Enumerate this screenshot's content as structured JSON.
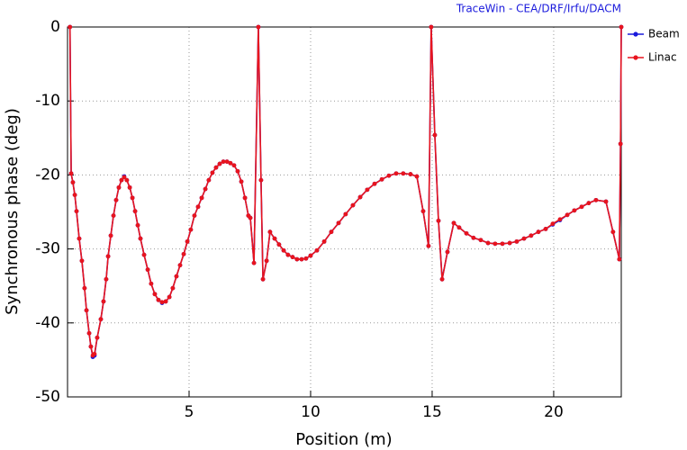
{
  "chart_data": {
    "type": "line",
    "subtitle": "TraceWin - CEA/DRF/Irfu/DACM",
    "x_label": "Position (m)",
    "y_label": "Synchronous phase (deg)",
    "xlim": [
      0,
      22.78
    ],
    "ylim": [
      -50,
      0
    ],
    "xticks": [
      5,
      10,
      15,
      20
    ],
    "yticks": [
      0,
      -10,
      -20,
      -30,
      -40,
      -50
    ],
    "grid": true,
    "legend": "right",
    "x": [
      0.1,
      0.15,
      0.22,
      0.3,
      0.37,
      0.48,
      0.59,
      0.7,
      0.78,
      0.89,
      0.96,
      1.04,
      1.11,
      1.22,
      1.37,
      1.48,
      1.59,
      1.67,
      1.78,
      1.89,
      2.0,
      2.11,
      2.22,
      2.33,
      2.44,
      2.56,
      2.67,
      2.78,
      2.89,
      3.0,
      3.15,
      3.3,
      3.44,
      3.59,
      3.74,
      3.89,
      4.04,
      4.19,
      4.33,
      4.48,
      4.63,
      4.78,
      4.93,
      5.07,
      5.22,
      5.37,
      5.52,
      5.67,
      5.81,
      5.96,
      6.11,
      6.26,
      6.41,
      6.56,
      6.7,
      6.85,
      7.0,
      7.15,
      7.3,
      7.44,
      7.52,
      7.67,
      7.85,
      7.96,
      8.04,
      8.19,
      8.33,
      8.52,
      8.7,
      8.89,
      9.07,
      9.26,
      9.44,
      9.63,
      9.81,
      10.0,
      10.26,
      10.56,
      10.85,
      11.15,
      11.44,
      11.74,
      12.04,
      12.33,
      12.63,
      12.93,
      13.22,
      13.52,
      13.81,
      14.11,
      14.37,
      14.63,
      14.85,
      14.96,
      15.11,
      15.26,
      15.41,
      15.63,
      15.89,
      16.11,
      16.41,
      16.7,
      17.0,
      17.3,
      17.59,
      17.89,
      18.19,
      18.48,
      18.78,
      19.07,
      19.37,
      19.67,
      19.96,
      20.26,
      20.56,
      20.85,
      21.15,
      21.44,
      21.74,
      22.15,
      22.44,
      22.7,
      22.75,
      22.78
    ],
    "series": [
      {
        "name": "Beam",
        "color": "#1a1adc",
        "values": [
          0,
          -19.8,
          -21,
          -22.7,
          -24.9,
          -28.6,
          -31.6,
          -35.3,
          -38.3,
          -41.4,
          -43.2,
          -44.6,
          -44.4,
          -42,
          -39.5,
          -37.1,
          -34.1,
          -31,
          -28.2,
          -25.5,
          -23.4,
          -21.7,
          -20.7,
          -20.2,
          -20.7,
          -21.7,
          -23.1,
          -24.9,
          -26.8,
          -28.6,
          -30.8,
          -32.8,
          -34.7,
          -36.1,
          -36.9,
          -37.3,
          -37.1,
          -36.5,
          -35.3,
          -33.7,
          -32.2,
          -30.7,
          -29,
          -27.4,
          -25.5,
          -24.3,
          -23.1,
          -21.9,
          -20.7,
          -19.7,
          -19,
          -18.5,
          -18.2,
          -18.2,
          -18.4,
          -18.7,
          -19.5,
          -20.9,
          -23.1,
          -25.5,
          -25.8,
          -31.9,
          0,
          -20.7,
          -34.1,
          -31.6,
          -27.7,
          -28.6,
          -29.4,
          -30.2,
          -30.8,
          -31.1,
          -31.4,
          -31.4,
          -31.3,
          -30.9,
          -30.2,
          -29,
          -27.7,
          -26.5,
          -25.3,
          -24.1,
          -23,
          -22,
          -21.2,
          -20.6,
          -20.1,
          -19.8,
          -19.8,
          -19.9,
          -20.2,
          -24.9,
          -29.6,
          0,
          -14.6,
          -26.2,
          -34.1,
          -30.4,
          -26.5,
          -27.1,
          -27.9,
          -28.5,
          -28.8,
          -29.2,
          -29.3,
          -29.3,
          -29.2,
          -29,
          -28.6,
          -28.2,
          -27.7,
          -27.3,
          -26.7,
          -26.1,
          -25.4,
          -24.8,
          -24.3,
          -23.8,
          -23.4,
          -23.6,
          -27.7,
          -31.4,
          -15.8,
          0
        ]
      },
      {
        "name": "Linac",
        "color": "#e8141e",
        "values": [
          0,
          -19.8,
          -21,
          -22.7,
          -24.9,
          -28.6,
          -31.6,
          -35.3,
          -38.3,
          -41.4,
          -43.2,
          -44.4,
          -44.2,
          -42,
          -39.5,
          -37.1,
          -34.1,
          -31,
          -28.2,
          -25.5,
          -23.4,
          -21.7,
          -20.7,
          -20.3,
          -20.7,
          -21.7,
          -23.1,
          -24.9,
          -26.8,
          -28.6,
          -30.8,
          -32.8,
          -34.7,
          -36.1,
          -36.9,
          -37.2,
          -37.1,
          -36.5,
          -35.3,
          -33.7,
          -32.2,
          -30.7,
          -29,
          -27.4,
          -25.5,
          -24.3,
          -23.1,
          -21.9,
          -20.7,
          -19.7,
          -19,
          -18.5,
          -18.2,
          -18.2,
          -18.4,
          -18.7,
          -19.5,
          -20.9,
          -23.1,
          -25.5,
          -25.8,
          -31.9,
          0,
          -20.7,
          -34.1,
          -31.6,
          -27.7,
          -28.6,
          -29.4,
          -30.2,
          -30.8,
          -31.1,
          -31.4,
          -31.4,
          -31.3,
          -30.9,
          -30.2,
          -29,
          -27.7,
          -26.5,
          -25.3,
          -24.1,
          -23,
          -22,
          -21.2,
          -20.6,
          -20.1,
          -19.8,
          -19.8,
          -19.9,
          -20.2,
          -24.9,
          -29.6,
          0,
          -14.6,
          -26.2,
          -34.1,
          -30.4,
          -26.5,
          -27.1,
          -27.9,
          -28.5,
          -28.8,
          -29.2,
          -29.3,
          -29.3,
          -29.2,
          -29,
          -28.6,
          -28.2,
          -27.7,
          -27.3,
          -26.6,
          -26,
          -25.4,
          -24.8,
          -24.3,
          -23.8,
          -23.4,
          -23.6,
          -27.7,
          -31.4,
          -15.8,
          0
        ]
      }
    ]
  }
}
